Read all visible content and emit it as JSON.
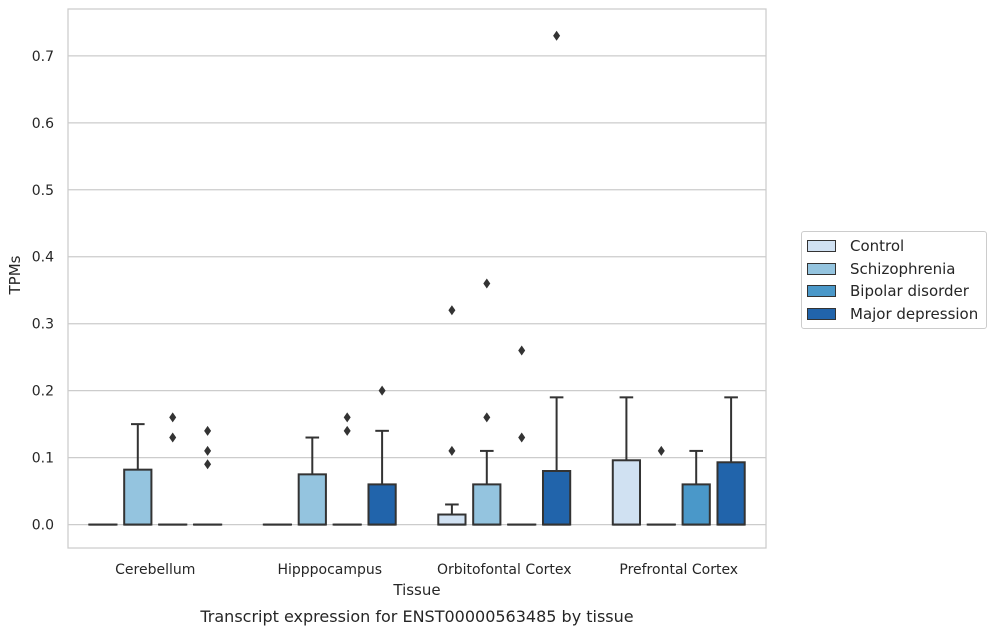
{
  "chart_data": {
    "type": "box",
    "caption": "Transcript expression for ENST00000563485 by tissue",
    "xlabel": "Tissue",
    "ylabel": "TPMs",
    "ylim": [
      -0.035,
      0.77
    ],
    "yticks": [
      "0.0",
      "0.1",
      "0.2",
      "0.3",
      "0.4",
      "0.5",
      "0.6",
      "0.7"
    ],
    "grid": "horizontal",
    "legend_position": "right",
    "categories": [
      "Cerebellum",
      "Hipppocampus",
      "Orbitofontal Cortex",
      "Prefrontal Cortex"
    ],
    "series": [
      {
        "name": "Control",
        "color": "#d0e1f2",
        "boxes": [
          {
            "q1": 0,
            "median": 0,
            "q3": 0,
            "whisker_low": 0,
            "whisker_high": 0,
            "outliers": []
          },
          {
            "q1": 0,
            "median": 0,
            "q3": 0,
            "whisker_low": 0,
            "whisker_high": 0,
            "outliers": []
          },
          {
            "q1": 0,
            "median": 0,
            "q3": 0.015,
            "whisker_low": 0,
            "whisker_high": 0.03,
            "outliers": [
              0.11,
              0.32
            ]
          },
          {
            "q1": 0,
            "median": 0,
            "q3": 0.096,
            "whisker_low": 0,
            "whisker_high": 0.19,
            "outliers": []
          }
        ]
      },
      {
        "name": "Schizophrenia",
        "color": "#94c4df",
        "boxes": [
          {
            "q1": 0,
            "median": 0,
            "q3": 0.082,
            "whisker_low": 0,
            "whisker_high": 0.15,
            "outliers": []
          },
          {
            "q1": 0,
            "median": 0,
            "q3": 0.075,
            "whisker_low": 0,
            "whisker_high": 0.13,
            "outliers": []
          },
          {
            "q1": 0,
            "median": 0,
            "q3": 0.06,
            "whisker_low": 0,
            "whisker_high": 0.11,
            "outliers": [
              0.16,
              0.36
            ]
          },
          {
            "q1": 0,
            "median": 0,
            "q3": 0,
            "whisker_low": 0,
            "whisker_high": 0,
            "outliers": [
              0.11
            ]
          }
        ]
      },
      {
        "name": "Bipolar disorder",
        "color": "#4a98c9",
        "boxes": [
          {
            "q1": 0,
            "median": 0,
            "q3": 0,
            "whisker_low": 0,
            "whisker_high": 0,
            "outliers": [
              0.13,
              0.16
            ]
          },
          {
            "q1": 0,
            "median": 0,
            "q3": 0,
            "whisker_low": 0,
            "whisker_high": 0,
            "outliers": [
              0.14,
              0.16
            ]
          },
          {
            "q1": 0,
            "median": 0,
            "q3": 0,
            "whisker_low": 0,
            "whisker_high": 0,
            "outliers": [
              0.13,
              0.26
            ]
          },
          {
            "q1": 0,
            "median": 0,
            "q3": 0.06,
            "whisker_low": 0,
            "whisker_high": 0.11,
            "outliers": []
          }
        ]
      },
      {
        "name": "Major depression",
        "color": "#2164ab",
        "boxes": [
          {
            "q1": 0,
            "median": 0,
            "q3": 0,
            "whisker_low": 0,
            "whisker_high": 0,
            "outliers": [
              0.09,
              0.11,
              0.14
            ]
          },
          {
            "q1": 0,
            "median": 0,
            "q3": 0.06,
            "whisker_low": 0,
            "whisker_high": 0.14,
            "outliers": [
              0.2
            ]
          },
          {
            "q1": 0,
            "median": 0,
            "q3": 0.08,
            "whisker_low": 0,
            "whisker_high": 0.19,
            "outliers": [
              0.73
            ]
          },
          {
            "q1": 0,
            "median": 0,
            "q3": 0.093,
            "whisker_low": 0,
            "whisker_high": 0.19,
            "outliers": []
          }
        ]
      }
    ]
  }
}
